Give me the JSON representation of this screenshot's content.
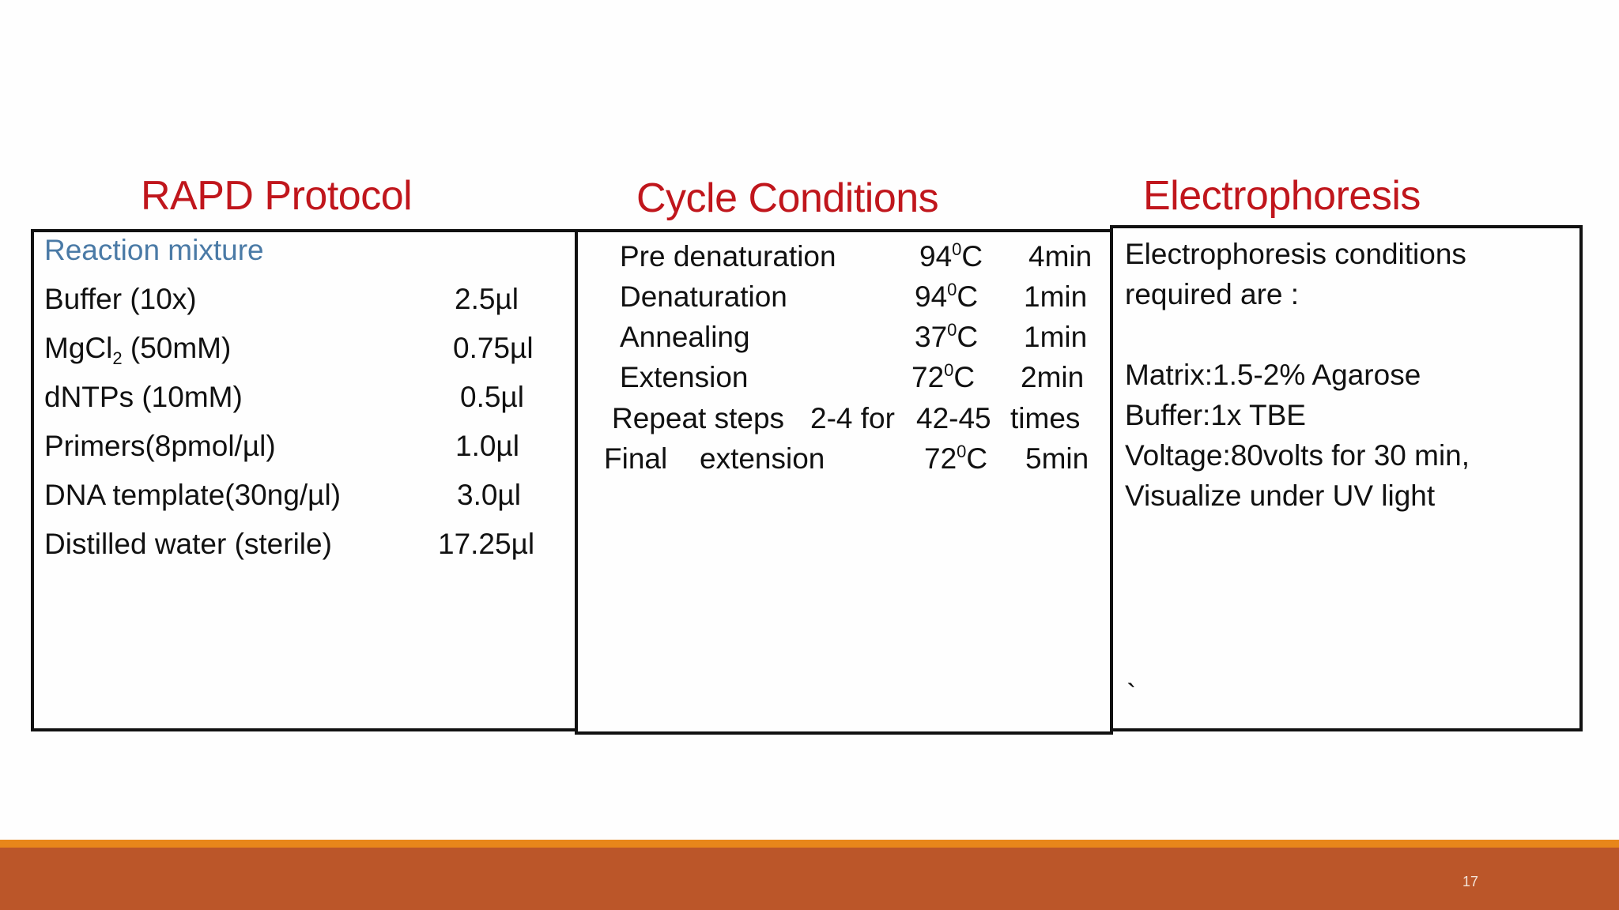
{
  "slide": {
    "page_number": "17"
  },
  "rapd": {
    "heading": "RAPD Protocol",
    "subheading": "Reaction mixture",
    "rows": [
      {
        "name_pre": "Buffer (10x)",
        "name_sub": "",
        "name_post": "",
        "value": "2.5µl"
      },
      {
        "name_pre": "MgCl",
        "name_sub": "2",
        "name_post": " (50mM)",
        "value": "0.75µl"
      },
      {
        "name_pre": "dNTPs (10mM)",
        "name_sub": "",
        "name_post": "",
        "value": "0.5µl"
      },
      {
        "name_pre": "Primers(8pmol/µl)",
        "name_sub": "",
        "name_post": "",
        "value": "1.0µl"
      },
      {
        "name_pre": "DNA template(30ng/µl)",
        "name_sub": "",
        "name_post": "",
        "value": "3.0µl"
      },
      {
        "name_pre": "Distilled water (sterile)",
        "name_sub": "",
        "name_post": "",
        "value": "17.25µl"
      }
    ]
  },
  "cycle": {
    "heading": "Cycle Conditions",
    "rows": [
      {
        "step": "Pre denaturation",
        "temp": "94",
        "temp_sup": "0",
        "temp_unit": "C",
        "time": "4min"
      },
      {
        "step": "Denaturation",
        "temp": "94",
        "temp_sup": "0",
        "temp_unit": "C",
        "time": "1min"
      },
      {
        "step": "Annealing",
        "temp": "37",
        "temp_sup": "0",
        "temp_unit": "C",
        "time": "1min"
      },
      {
        "step": "Extension",
        "temp": "72",
        "temp_sup": "0",
        "temp_unit": "C",
        "time": "2min"
      }
    ],
    "repeat": {
      "a": "Repeat steps",
      "b": "2-4 for",
      "c": "42-45",
      "d": "times"
    },
    "final": {
      "a": "Final",
      "b": "extension",
      "temp": "72",
      "temp_sup": "0",
      "temp_unit": "C",
      "time": "5min"
    }
  },
  "electro": {
    "heading": "Electrophoresis",
    "lines": [
      "Electrophoresis conditions",
      "required are :",
      "Matrix:1.5-2% Agarose",
      "Buffer:1x TBE",
      "Voltage:80volts for 30 min,",
      "Visualize under UV light"
    ],
    "tick": "`"
  }
}
